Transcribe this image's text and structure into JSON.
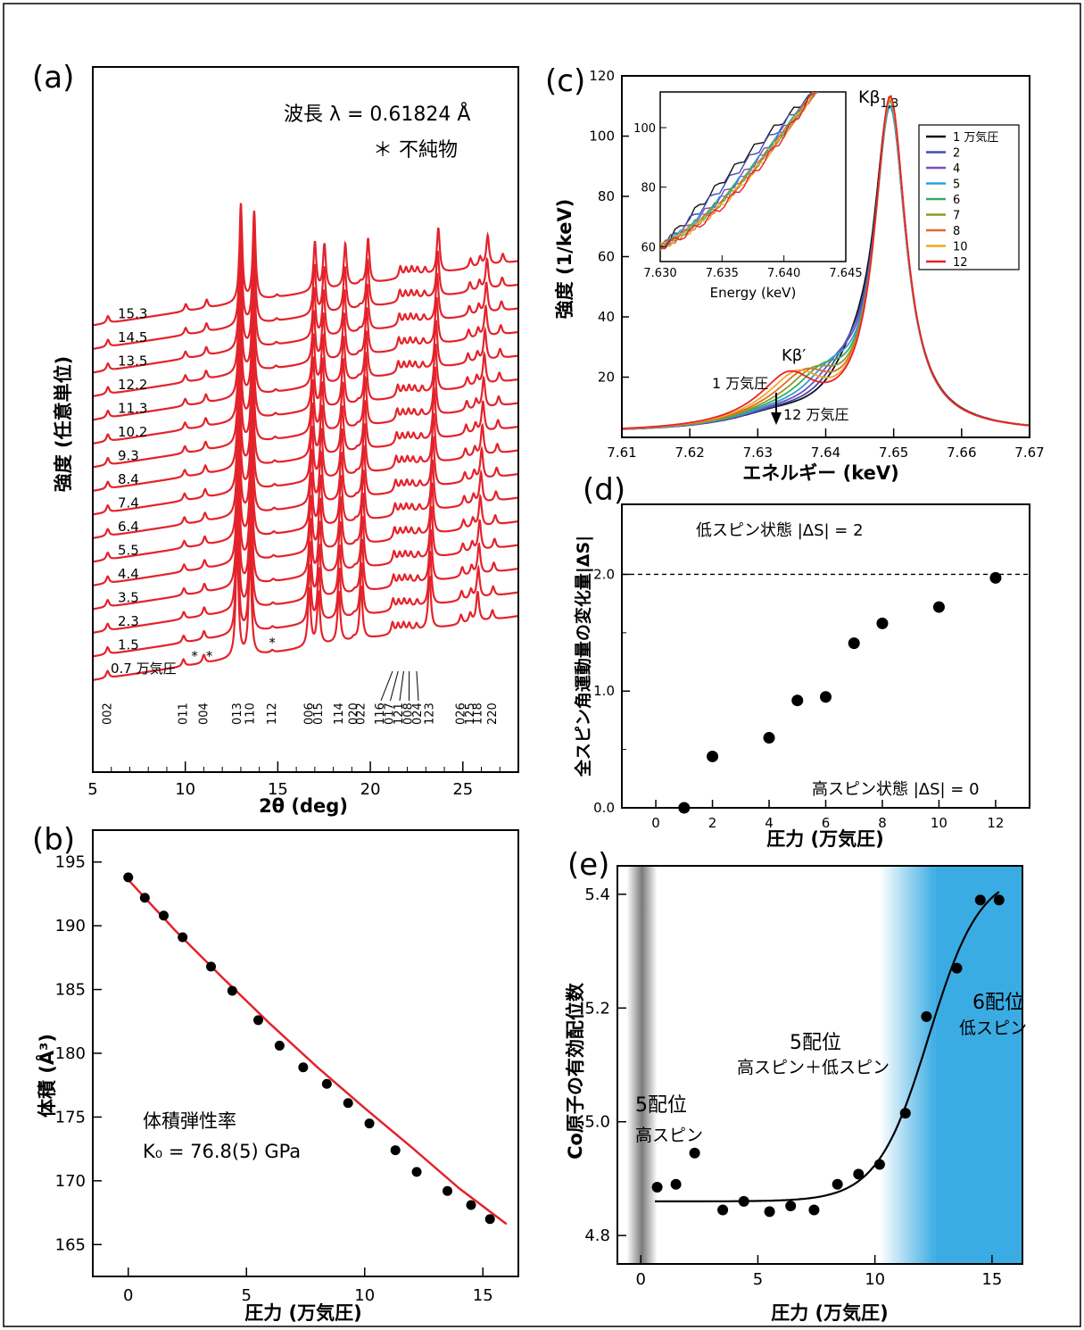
{
  "chart_data": [
    {
      "panel_label": "(a)",
      "type": "line",
      "xlabel": "2θ (deg)",
      "ylabel": "強度 (任意単位)",
      "xlim": [
        5,
        28
      ],
      "xticks": [
        5,
        10,
        15,
        20,
        25
      ],
      "annotations": [
        "波長 λ = 0.61824 Å",
        "＊ 不純物"
      ],
      "impurity_marks": [
        10.5,
        11.3,
        14.7
      ],
      "pressure_labels": [
        "0.7 万気圧",
        "1.5",
        "2.3",
        "3.5",
        "4.4",
        "5.5",
        "6.4",
        "7.4",
        "8.4",
        "9.3",
        "10.2",
        "11.3",
        "12.2",
        "13.5",
        "14.5",
        "15.3"
      ],
      "peaks": [
        {
          "hkl": "002",
          "x": 5.8,
          "h": 0.3
        },
        {
          "hkl": "011",
          "x": 9.9,
          "h": 0.3
        },
        {
          "hkl": "004",
          "x": 11.0,
          "h": 0.35
        },
        {
          "hkl": "013",
          "x": 12.8,
          "h": 5.0
        },
        {
          "hkl": "110",
          "x": 13.5,
          "h": 4.5
        },
        {
          "hkl": "112",
          "x": 14.7,
          "h": 0.1
        },
        {
          "hkl": "006",
          "x": 16.7,
          "h": 2.5
        },
        {
          "hkl": "015",
          "x": 17.2,
          "h": 2.3
        },
        {
          "hkl": "114",
          "x": 18.3,
          "h": 2.2
        },
        {
          "hkl": "020",
          "x": 19.1,
          "h": 0.1
        },
        {
          "hkl": "022",
          "x": 19.5,
          "h": 2.3
        },
        {
          "hkl": "116",
          "x": 21.2,
          "h": 0.5
        },
        {
          "hkl": "017",
          "x": 21.5,
          "h": 0.4
        },
        {
          "hkl": "121",
          "x": 21.8,
          "h": 0.4
        },
        {
          "hkl": "008",
          "x": 22.1,
          "h": 0.35
        },
        {
          "hkl": "024",
          "x": 22.5,
          "h": 0.3
        },
        {
          "hkl": "123",
          "x": 23.2,
          "h": 2.3
        },
        {
          "hkl": "026",
          "x": 24.9,
          "h": 0.4
        },
        {
          "hkl": "125",
          "x": 25.4,
          "h": 0.4
        },
        {
          "hkl": "118",
          "x": 25.8,
          "h": 1.3
        },
        {
          "hkl": "220",
          "x": 26.6,
          "h": 0.4
        }
      ]
    },
    {
      "panel_label": "(b)",
      "type": "scatter",
      "xlabel": "圧力 (万気圧)",
      "ylabel": "体積 (Å³)",
      "xlim": [
        -1.5,
        16.5
      ],
      "ylim": [
        162.5,
        197.5
      ],
      "xticks": [
        0,
        5,
        10,
        15
      ],
      "yticks": [
        165,
        170,
        175,
        180,
        185,
        190,
        195
      ],
      "annotation_title": "体積弾性率",
      "annotation_value": "K₀ = 76.8(5) GPa",
      "series": [
        {
          "type": "scatter",
          "x": [
            0,
            0.7,
            1.5,
            2.3,
            3.5,
            4.4,
            5.5,
            6.4,
            7.4,
            8.4,
            9.3,
            10.2,
            11.3,
            12.2,
            13.5,
            14.5,
            15.3
          ],
          "y": [
            193.8,
            192.2,
            190.8,
            189.1,
            186.8,
            184.9,
            182.6,
            180.6,
            178.9,
            177.6,
            176.1,
            174.5,
            172.4,
            170.7,
            169.2,
            168.1,
            167.0
          ]
        },
        {
          "type": "fit",
          "x": [
            0,
            2,
            4,
            6,
            8,
            10,
            12,
            14,
            16
          ],
          "y": [
            193.6,
            189.6,
            185.9,
            182.3,
            178.9,
            175.7,
            172.6,
            169.4,
            166.6
          ]
        }
      ]
    },
    {
      "panel_label": "(c)",
      "type": "line",
      "xlabel": "エネルギー (keV)",
      "ylabel": "強度 (1/keV)",
      "xlim": [
        7.61,
        7.67
      ],
      "ylim": [
        0,
        120
      ],
      "xticks": [
        7.61,
        7.62,
        7.63,
        7.64,
        7.65,
        7.66,
        7.67
      ],
      "yticks": [
        20,
        40,
        60,
        80,
        100,
        120
      ],
      "peak_label": "Kβ",
      "peak_sub": "1,3",
      "kbprime_label": "Kβ′",
      "arrow_top_label": "1 万気圧",
      "arrow_bottom_label": "12 万気圧",
      "legend": [
        "1 万気圧",
        "2",
        "4",
        "5",
        "6",
        "7",
        "8",
        "10",
        "12"
      ],
      "legend_placement": "right",
      "colors": [
        "#111111",
        "#3b4fb0",
        "#7b4fb8",
        "#2aa2dc",
        "#3da85e",
        "#8c9b2a",
        "#e06a2c",
        "#f2a922",
        "#e8222b"
      ],
      "peak_heights": [
        104,
        103,
        104,
        105,
        107,
        108,
        109,
        109,
        110
      ],
      "inset": {
        "xlabel": "Energy (keV)",
        "xlim": [
          7.63,
          7.645
        ],
        "ylim": [
          55,
          112
        ],
        "xticks": [
          7.63,
          7.635,
          7.64,
          7.645
        ],
        "yticks": [
          60,
          80,
          100
        ]
      }
    },
    {
      "panel_label": "(d)",
      "type": "scatter",
      "xlabel": "圧力 (万気圧)",
      "ylabel": "全スピン角運動量の変化量|ΔS|",
      "xlim": [
        -1.2,
        13.2
      ],
      "ylim": [
        0,
        2.6
      ],
      "xticks": [
        0,
        2,
        4,
        6,
        8,
        10,
        12
      ],
      "yticks": [
        0.0,
        1.0,
        2.0
      ],
      "ref_line_y": 2.0,
      "top_label": "低スピン状態 |ΔS| = 2",
      "bottom_label": "高スピン状態  |ΔS| = 0",
      "x": [
        1,
        2,
        4,
        5,
        6,
        7,
        8,
        10,
        12
      ],
      "y": [
        0.0,
        0.44,
        0.6,
        0.92,
        0.95,
        1.41,
        1.58,
        1.72,
        1.97
      ]
    },
    {
      "panel_label": "(e)",
      "type": "scatter",
      "xlabel": "圧力 (万気圧)",
      "ylabel": "Co原子の有効配位数",
      "xlim": [
        -1,
        16.3
      ],
      "ylim": [
        4.75,
        5.45
      ],
      "xticks": [
        0,
        5,
        10,
        15
      ],
      "yticks": [
        4.8,
        5.0,
        5.2,
        5.4
      ],
      "region_labels": {
        "left_title": "5配位",
        "left_sub": "高スピン",
        "mid_title": "5配位",
        "mid_sub": "高スピン＋低スピン",
        "right_title": "6配位",
        "right_sub": "低スピン"
      },
      "colors": {
        "gray_band": "#7a7a7a",
        "blue": "#3bace3"
      },
      "x": [
        0.7,
        1.5,
        2.3,
        3.5,
        4.4,
        5.5,
        6.4,
        7.4,
        8.4,
        9.3,
        10.2,
        11.3,
        12.2,
        13.5,
        14.5,
        15.3
      ],
      "y": [
        4.885,
        4.89,
        4.945,
        4.845,
        4.86,
        4.842,
        4.852,
        4.845,
        4.89,
        4.908,
        4.925,
        5.015,
        5.185,
        5.27,
        5.39,
        5.39
      ],
      "fit": {
        "type": "sigmoid",
        "base": 4.86,
        "amplitude": 0.58,
        "center": 12.3,
        "width": 1.1
      }
    }
  ]
}
